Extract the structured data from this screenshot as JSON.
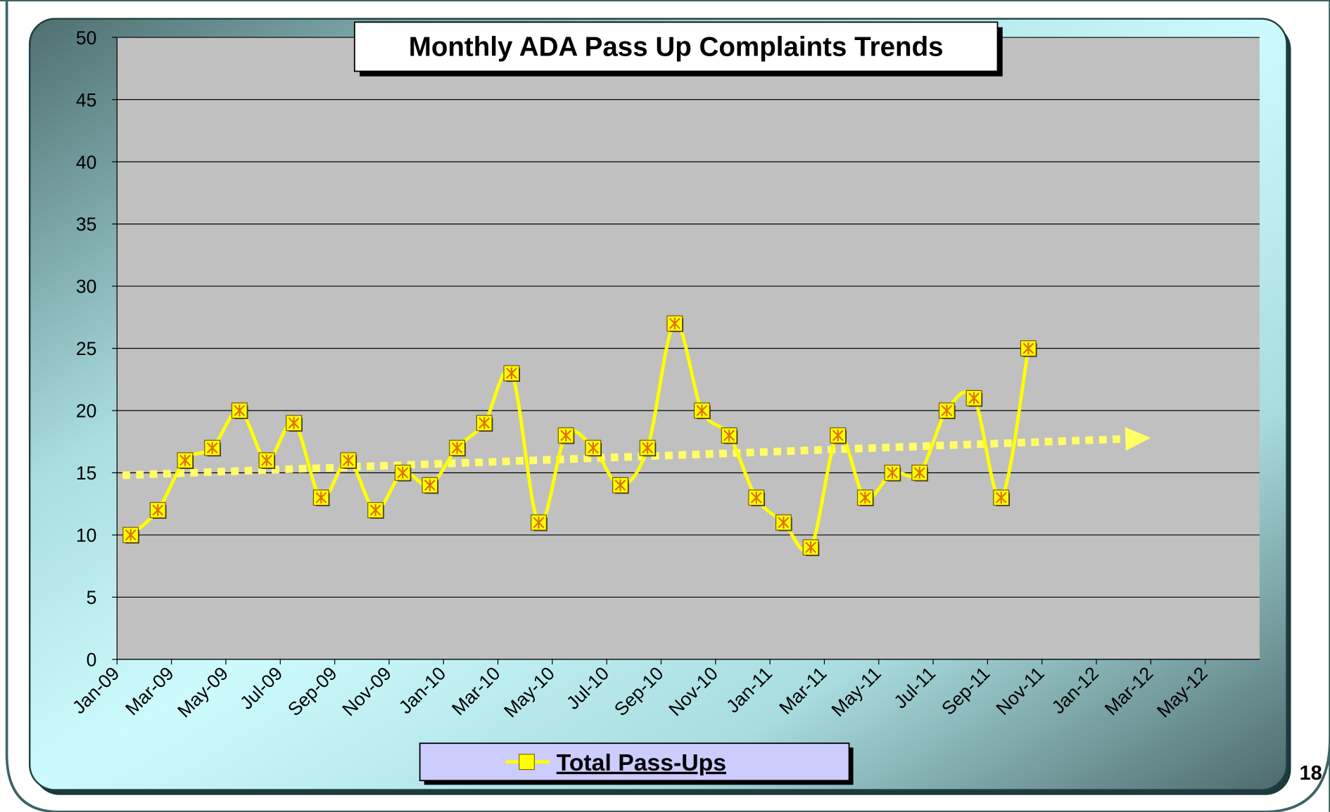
{
  "chart_data": {
    "type": "line",
    "title": "Monthly ADA Pass Up Complaints Trends",
    "x": [
      "2009-01",
      "2009-02",
      "2009-03",
      "2009-04",
      "2009-05",
      "2009-06",
      "2009-07",
      "2009-08",
      "2009-09",
      "2009-10",
      "2009-11",
      "2009-12",
      "2010-01",
      "2010-02",
      "2010-03",
      "2010-04",
      "2010-05",
      "2010-06",
      "2010-07",
      "2010-08",
      "2010-09",
      "2010-10",
      "2010-11",
      "2010-12",
      "2011-01",
      "2011-02",
      "2011-03",
      "2011-04",
      "2011-05",
      "2011-06",
      "2011-07",
      "2011-08",
      "2011-09",
      "2011-10"
    ],
    "series": [
      {
        "name": "Total Pass-Ups",
        "color": "#ffff00",
        "values": [
          10,
          12,
          16,
          17,
          20,
          16,
          19,
          13,
          16,
          12,
          15,
          14,
          17,
          19,
          23,
          11,
          18,
          17,
          14,
          17,
          27,
          20,
          18,
          13,
          11,
          9,
          18,
          13,
          15,
          15,
          20,
          21,
          13,
          25
        ]
      }
    ],
    "trendline": {
      "x": [
        "2009-01",
        "2012-03"
      ],
      "values": [
        14.8,
        17.8
      ]
    },
    "xlim": [
      "2009-01",
      "2012-07"
    ],
    "xticks": [
      {
        "value": "2009-01",
        "label": "Jan-09"
      },
      {
        "value": "2009-03",
        "label": "Mar-09"
      },
      {
        "value": "2009-05",
        "label": "May-09"
      },
      {
        "value": "2009-07",
        "label": "Jul-09"
      },
      {
        "value": "2009-09",
        "label": "Sep-09"
      },
      {
        "value": "2009-11",
        "label": "Nov-09"
      },
      {
        "value": "2010-01",
        "label": "Jan-10"
      },
      {
        "value": "2010-03",
        "label": "Mar-10"
      },
      {
        "value": "2010-05",
        "label": "May-10"
      },
      {
        "value": "2010-07",
        "label": "Jul-10"
      },
      {
        "value": "2010-09",
        "label": "Sep-10"
      },
      {
        "value": "2010-11",
        "label": "Nov-10"
      },
      {
        "value": "2011-01",
        "label": "Jan-11"
      },
      {
        "value": "2011-03",
        "label": "Mar-11"
      },
      {
        "value": "2011-05",
        "label": "May-11"
      },
      {
        "value": "2011-07",
        "label": "Jul-11"
      },
      {
        "value": "2011-09",
        "label": "Sep-11"
      },
      {
        "value": "2011-11",
        "label": "Nov-11"
      },
      {
        "value": "2012-01",
        "label": "Jan-12"
      },
      {
        "value": "2012-03",
        "label": "Mar-12"
      },
      {
        "value": "2012-05",
        "label": "May-12"
      }
    ],
    "ylim": [
      0,
      50
    ],
    "yticks": [
      0,
      5,
      10,
      15,
      20,
      25,
      30,
      35,
      40,
      45,
      50
    ],
    "grid": true,
    "legend": "bottom"
  },
  "page_number": "18"
}
